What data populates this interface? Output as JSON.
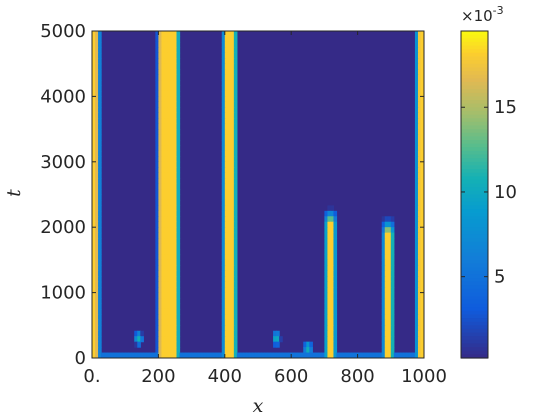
{
  "chart_data": {
    "type": "heatmap",
    "xlabel": "x",
    "ylabel": "t",
    "xlim": [
      0,
      1000
    ],
    "ylim": [
      0,
      5000
    ],
    "x_ticks": [
      0,
      200,
      400,
      600,
      800,
      1000
    ],
    "x_tick_labels": [
      "0.",
      "200",
      "400",
      "600",
      "800",
      "1000"
    ],
    "y_ticks": [
      0,
      1000,
      2000,
      3000,
      4000,
      5000
    ],
    "y_tick_labels": [
      "0",
      "1000",
      "2000",
      "3000",
      "4000",
      "5000"
    ],
    "colorbar": {
      "range": [
        0.0002,
        0.0195
      ],
      "ticks": [
        0.005,
        0.01,
        0.015
      ],
      "tick_labels": [
        "5",
        "10",
        "15"
      ],
      "exponent_base": "×10",
      "exponent_power": "-3",
      "colormap": "parula"
    },
    "stripes": [
      {
        "center": 0,
        "width": 45,
        "t_start": 0,
        "t_end": 5000
      },
      {
        "center": 215,
        "width": 34,
        "t_start": 0,
        "t_end": 5000
      },
      {
        "center": 242,
        "width": 40,
        "t_start": 0,
        "t_end": 5000
      },
      {
        "center": 415,
        "width": 40,
        "t_start": 0,
        "t_end": 5000
      },
      {
        "center": 718,
        "width": 30,
        "t_start": 0,
        "t_end": 2300
      },
      {
        "center": 892,
        "width": 30,
        "t_start": 0,
        "t_end": 2150
      },
      {
        "center": 1000,
        "width": 48,
        "t_start": 0,
        "t_end": 5000
      }
    ],
    "transients": [
      {
        "x": 140,
        "t": 300
      },
      {
        "x": 555,
        "t": 300
      },
      {
        "x": 650,
        "t": 150
      }
    ]
  }
}
